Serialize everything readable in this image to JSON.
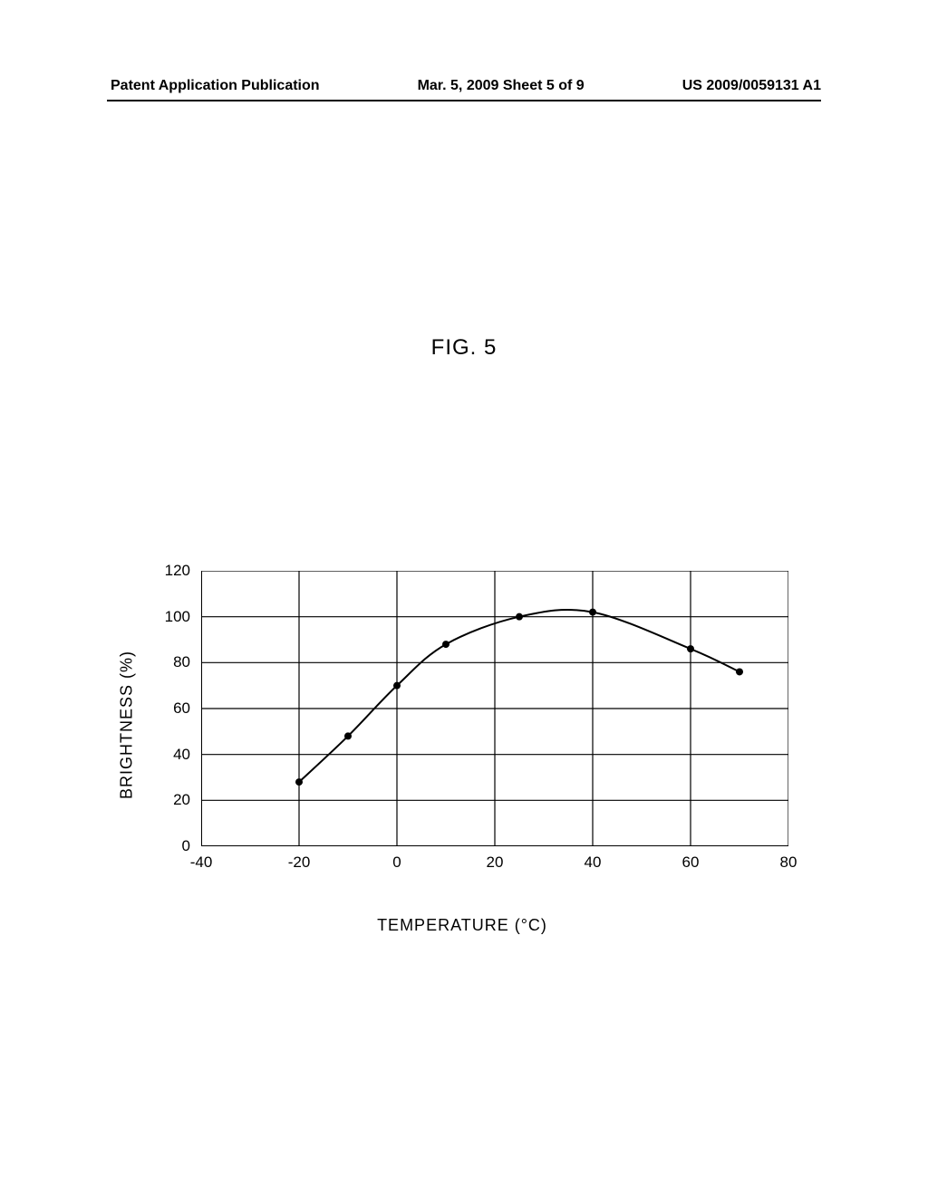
{
  "header": {
    "left": "Patent Application Publication",
    "center": "Mar. 5, 2009  Sheet 5 of 9",
    "right": "US 2009/0059131 A1"
  },
  "figure_label": "FIG. 5",
  "chart": {
    "type": "line",
    "xlabel": "TEMPERATURE (°C)",
    "ylabel": "BRIGHTNESS (%)",
    "xlim": [
      -40,
      80
    ],
    "ylim": [
      0,
      120
    ],
    "xticks": [
      -40,
      -20,
      0,
      20,
      40,
      60,
      80
    ],
    "yticks": [
      0,
      20,
      40,
      60,
      80,
      100,
      120
    ],
    "grid_color": "#000000",
    "grid_width": 1.2,
    "axis_width": 2,
    "background_color": "#ffffff",
    "line_color": "#000000",
    "line_width": 2,
    "marker_color": "#000000",
    "marker_radius": 4,
    "label_fontsize": 18,
    "tick_fontsize": 17,
    "points": [
      {
        "x": -20,
        "y": 28
      },
      {
        "x": -10,
        "y": 48
      },
      {
        "x": 0,
        "y": 70
      },
      {
        "x": 10,
        "y": 88
      },
      {
        "x": 25,
        "y": 100
      },
      {
        "x": 40,
        "y": 102
      },
      {
        "x": 60,
        "y": 86
      },
      {
        "x": 70,
        "y": 76
      }
    ]
  }
}
